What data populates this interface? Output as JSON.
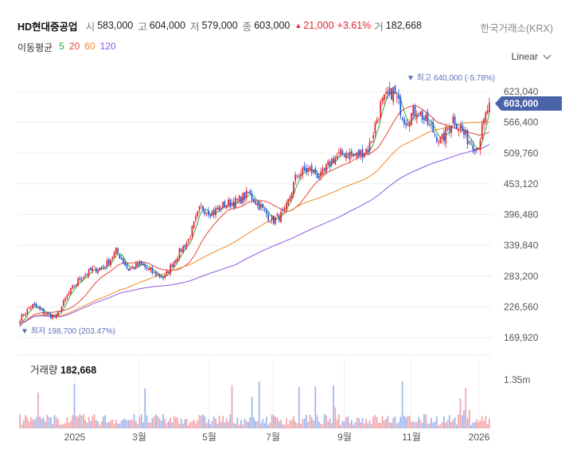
{
  "header": {
    "title": "HD현대중공업",
    "open_label": "시",
    "open_value": "583,000",
    "high_label": "고",
    "high_value": "604,000",
    "low_label": "저",
    "low_value": "579,000",
    "close_label": "종",
    "close_value": "603,000",
    "change_value": "21,000",
    "change_pct": "+3.61%",
    "volume_label": "거",
    "volume_value": "182,668",
    "exchange": "한국거래소(KRX)"
  },
  "ma_legend": {
    "label": "이동평균",
    "items": [
      {
        "period": "5",
        "color": "#2eaa3f"
      },
      {
        "period": "20",
        "color": "#e2473a"
      },
      {
        "period": "60",
        "color": "#f08a24"
      },
      {
        "period": "120",
        "color": "#8e57e6"
      }
    ]
  },
  "scale_button": "Linear",
  "volume_panel": {
    "label": "거래량",
    "value": "182,668",
    "max_label": "1.35m"
  },
  "colors": {
    "up": "#e0222e",
    "down": "#2456d8",
    "grid": "#ececec",
    "price_tag": "#4b63a8",
    "annotation": "#5b6fb8"
  },
  "chart_data": {
    "type": "candlestick",
    "y_ticks": [
      "623,040",
      "566,400",
      "509,760",
      "453,120",
      "396,480",
      "339,840",
      "283,200",
      "226,560",
      "169,920"
    ],
    "ylim": [
      169920,
      623040
    ],
    "x_ticks": [
      "2025",
      "3월",
      "5월",
      "7월",
      "9월",
      "11월",
      "2026"
    ],
    "last_price_label": "603,000",
    "last_price": 603000,
    "high_annotation": "▼ 최고 640,000 (-5.78%)",
    "high_value": 640000,
    "low_annotation": "▼ 최저 198,700 (203.47%)",
    "low_value": 198700,
    "moving_averages": [
      "5",
      "20",
      "60",
      "120"
    ],
    "price_path": [
      [
        "2024-12",
        205000
      ],
      [
        "2024-12",
        230000
      ],
      [
        "2025-01",
        215000
      ],
      [
        "2025-01",
        208000
      ],
      [
        "2025-01",
        250000
      ],
      [
        "2025-02",
        280000
      ],
      [
        "2025-02",
        295000
      ],
      [
        "2025-02",
        300000
      ],
      [
        "2025-03",
        330000
      ],
      [
        "2025-03",
        295000
      ],
      [
        "2025-03",
        305000
      ],
      [
        "2025-04",
        290000
      ],
      [
        "2025-04",
        280000
      ],
      [
        "2025-04",
        320000
      ],
      [
        "2025-05",
        350000
      ],
      [
        "2025-05",
        410000
      ],
      [
        "2025-05",
        400000
      ],
      [
        "2025-06",
        415000
      ],
      [
        "2025-06",
        420000
      ],
      [
        "2025-06",
        435000
      ],
      [
        "2025-07",
        410000
      ],
      [
        "2025-07",
        385000
      ],
      [
        "2025-07",
        400000
      ],
      [
        "2025-08",
        470000
      ],
      [
        "2025-08",
        480000
      ],
      [
        "2025-08",
        465000
      ],
      [
        "2025-09",
        500000
      ],
      [
        "2025-09",
        510000
      ],
      [
        "2025-09",
        505000
      ],
      [
        "2025-10",
        520000
      ],
      [
        "2025-10",
        600000
      ],
      [
        "2025-10",
        625000
      ],
      [
        "2025-11",
        570000
      ],
      [
        "2025-11",
        590000
      ],
      [
        "2025-11",
        560000
      ],
      [
        "2025-12",
        530000
      ],
      [
        "2025-12",
        575000
      ],
      [
        "2025-12",
        540000
      ],
      [
        "2026-01",
        520000
      ],
      [
        "2026-01",
        603000
      ]
    ]
  }
}
